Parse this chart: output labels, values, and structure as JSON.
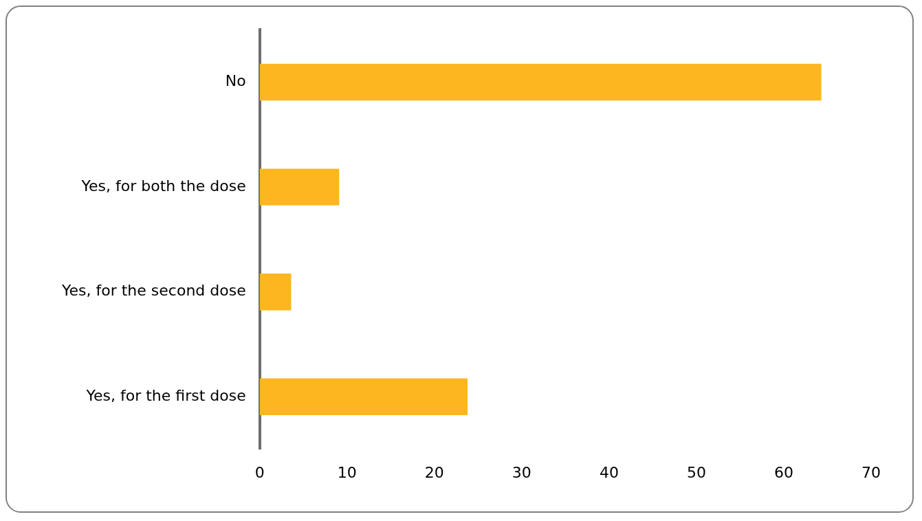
{
  "chart_data": {
    "type": "bar",
    "orientation": "horizontal",
    "categories": [
      "No",
      "Yes, for both the dose",
      "Yes, for the second dose",
      "Yes, for the first dose"
    ],
    "values": [
      64.3,
      9.1,
      3.6,
      23.8
    ],
    "color": "#fdb61f",
    "xlim": [
      0,
      70
    ],
    "xticks": [
      0,
      10,
      20,
      30,
      40,
      50,
      60,
      70
    ],
    "grid": false,
    "legend": false
  }
}
